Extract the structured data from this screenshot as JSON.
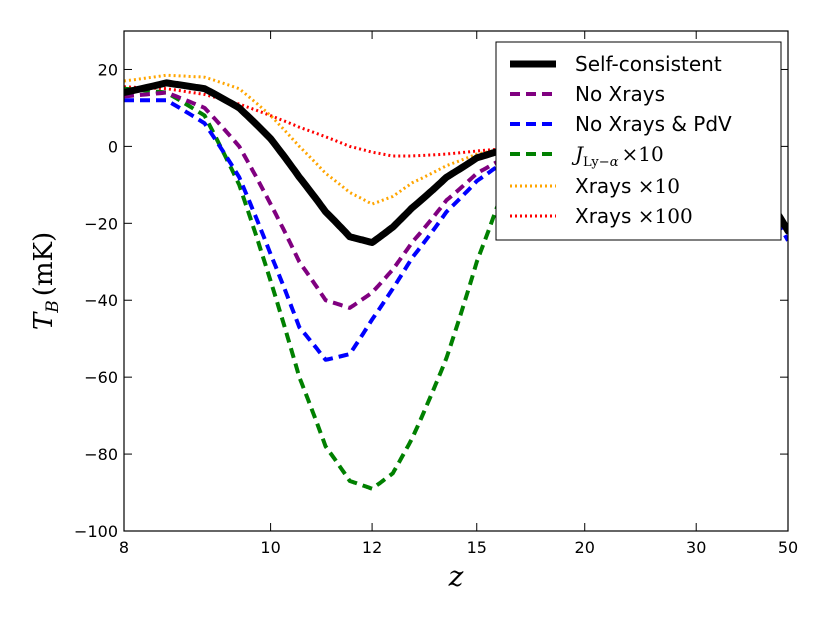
{
  "chart_data": {
    "type": "line",
    "xlabel": "z",
    "ylabel": "T_B (mK)",
    "ylabel_parts": {
      "symbol": "T",
      "subscript": "B",
      "unit": "(mK)"
    },
    "x_scale": "reciprocal (1+z)",
    "xlim": [
      8,
      50
    ],
    "ylim": [
      -100,
      30
    ],
    "xticks": [
      8,
      10,
      12,
      15,
      20,
      30,
      50
    ],
    "yticks": [
      -100,
      -80,
      -60,
      -40,
      -20,
      0,
      20
    ],
    "ytick_labels": [
      "−100",
      "−80",
      "−60",
      "−40",
      "−20",
      "0",
      "20"
    ],
    "grid": false,
    "legend_position": "top-right",
    "series": [
      {
        "name": "Self-consistent",
        "color": "#000000",
        "style": "solid",
        "x": [
          8,
          8.5,
          9,
          9.5,
          10,
          10.5,
          11,
          11.5,
          12,
          12.5,
          13,
          14,
          15,
          16,
          17,
          18,
          19,
          20,
          25,
          30,
          40,
          50
        ],
        "y": [
          14,
          16.5,
          15,
          10,
          2,
          -8,
          -17,
          -23.5,
          -25,
          -21,
          -16,
          -8,
          -3,
          -0.8,
          -0.2,
          0,
          -0.2,
          -0.5,
          -1.5,
          -3,
          -9,
          -22
        ]
      },
      {
        "name": "No Xrays",
        "color": "#800080",
        "style": "dashed",
        "x": [
          8,
          8.5,
          9,
          9.5,
          10,
          10.5,
          11,
          11.5,
          12,
          12.5,
          13,
          14,
          15,
          16,
          17,
          18,
          19,
          20,
          25,
          30,
          40,
          50
        ],
        "y": [
          13,
          14,
          10,
          0,
          -15,
          -30,
          -40,
          -42,
          -38,
          -32,
          -25,
          -14,
          -7,
          -3,
          -1,
          -0.3,
          -0.1,
          -0.2,
          -1.5,
          -3,
          -9,
          -22
        ]
      },
      {
        "name": "No Xrays & PdV",
        "color": "#0000ff",
        "style": "dashed",
        "x": [
          8,
          8.5,
          9,
          9.5,
          10,
          10.5,
          11,
          11.5,
          12,
          12.5,
          13,
          14,
          15,
          16,
          17,
          18,
          19,
          20,
          25,
          30,
          40,
          50
        ],
        "y": [
          12,
          12,
          6,
          -8,
          -28,
          -47,
          -55.5,
          -54,
          -45,
          -37,
          -29,
          -17,
          -9,
          -4,
          -1.5,
          -0.5,
          -0.2,
          -0.3,
          -1.5,
          -3.5,
          -11,
          -24.5
        ]
      },
      {
        "name": "J_{Ly−α} ×10",
        "color": "#008000",
        "style": "dashed",
        "x": [
          8,
          8.5,
          9,
          9.5,
          10,
          10.5,
          11,
          11.5,
          12,
          12.5,
          13,
          14,
          15,
          16,
          17,
          18,
          19,
          20,
          25,
          30,
          40,
          50
        ],
        "y": [
          15,
          14,
          8,
          -10,
          -35,
          -60,
          -78,
          -87,
          -89,
          -85,
          -76,
          -55,
          -30,
          -11,
          -5,
          -2,
          -0.8,
          -0.3,
          -1.5,
          -3,
          -9,
          -22
        ]
      },
      {
        "name": "Xrays ×10",
        "color": "#ffa500",
        "style": "dotted",
        "x": [
          8,
          8.5,
          9,
          9.5,
          10,
          10.5,
          11,
          11.5,
          12,
          12.5,
          13,
          14,
          15,
          16,
          17,
          18,
          19,
          20,
          25,
          30,
          40,
          50
        ],
        "y": [
          17,
          18.5,
          18,
          15,
          8,
          0,
          -7,
          -12,
          -15,
          -13,
          -9.5,
          -5,
          -2,
          -0.6,
          -0.2,
          0,
          -0.2,
          -0.5,
          -1.5,
          -3,
          -9,
          -22
        ]
      },
      {
        "name": "Xrays ×100",
        "color": "#ff0000",
        "style": "dotted",
        "x": [
          8,
          8.5,
          9,
          9.5,
          10,
          10.5,
          11,
          11.5,
          12,
          12.5,
          13,
          14,
          15,
          16,
          17,
          18,
          19,
          20,
          25,
          30,
          40,
          50
        ],
        "y": [
          15.5,
          15,
          13.5,
          11,
          8,
          5,
          2.5,
          0,
          -1.5,
          -2.5,
          -2.5,
          -2,
          -1.2,
          -0.6,
          -0.2,
          0,
          -0.2,
          -0.5,
          -1.5,
          -3,
          -9,
          -22
        ]
      }
    ]
  }
}
